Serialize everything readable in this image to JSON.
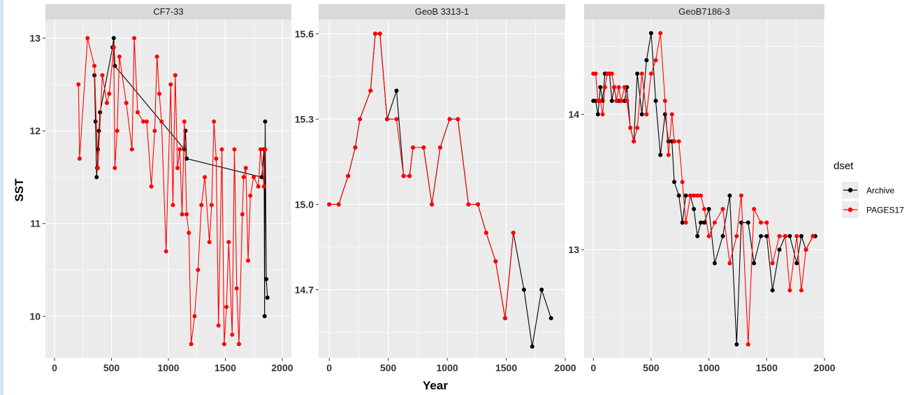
{
  "chart_data": {
    "type": "line",
    "xlabel": "Year",
    "ylabel": "SST",
    "legend": {
      "title": "dset",
      "position": "right",
      "entries": [
        {
          "name": "Archive",
          "color": "#000000"
        },
        {
          "name": "PAGES17",
          "color": "#ff0000"
        }
      ]
    },
    "panels": [
      {
        "title": "CF7-33",
        "xlim": [
          -80,
          2080
        ],
        "ylim": [
          9.55,
          13.2
        ],
        "xticks": [
          0,
          500,
          1000,
          1500,
          2000
        ],
        "yticks": [
          10,
          11,
          12,
          13
        ],
        "series": [
          {
            "name": "Archive",
            "x": [
              350,
              360,
              370,
              375,
              380,
              390,
              400,
              510,
              520,
              530,
              1140,
              1150,
              1160,
              1820,
              1840,
              1845,
              1850,
              1860,
              1870
            ],
            "y": [
              12.6,
              12.1,
              11.5,
              11.6,
              11.8,
              12.0,
              12.2,
              12.9,
              13.0,
              12.7,
              11.8,
              12.0,
              11.7,
              11.5,
              11.8,
              10.0,
              12.1,
              10.4,
              10.2
            ]
          },
          {
            "name": "PAGES17",
            "x": [
              210,
              220,
              290,
              350,
              380,
              420,
              460,
              480,
              520,
              530,
              550,
              570,
              630,
              680,
              700,
              730,
              780,
              810,
              850,
              880,
              900,
              920,
              940,
              980,
              1020,
              1040,
              1060,
              1080,
              1100,
              1120,
              1140,
              1160,
              1180,
              1200,
              1230,
              1260,
              1290,
              1320,
              1360,
              1380,
              1400,
              1420,
              1440,
              1470,
              1490,
              1510,
              1530,
              1560,
              1580,
              1600,
              1620,
              1650,
              1660,
              1680,
              1700,
              1720,
              1750,
              1790,
              1810,
              1840,
              1850
            ],
            "y": [
              12.5,
              11.7,
              13.0,
              12.7,
              11.6,
              12.6,
              12.3,
              12.4,
              12.9,
              11.6,
              12.0,
              12.8,
              12.3,
              11.8,
              13.0,
              12.2,
              12.1,
              12.1,
              11.4,
              12.0,
              12.8,
              12.4,
              12.1,
              10.7,
              12.5,
              11.2,
              12.6,
              11.6,
              11.8,
              11.1,
              12.1,
              11.1,
              10.9,
              9.7,
              10.0,
              10.5,
              11.2,
              11.5,
              10.8,
              11.2,
              12.1,
              11.7,
              9.9,
              11.8,
              9.7,
              10.1,
              10.8,
              9.8,
              11.8,
              10.3,
              9.7,
              11.1,
              11.5,
              11.6,
              10.6,
              11.3,
              11.5,
              11.4,
              11.8,
              11.4,
              11.8
            ]
          }
        ]
      },
      {
        "title": "GeoB 3313-1",
        "xlim": [
          -90,
          2000
        ],
        "ylim": [
          14.46,
          15.65
        ],
        "xticks": [
          0,
          500,
          1000,
          1500,
          2000
        ],
        "yticks": [
          14.7,
          15.0,
          15.3,
          15.6
        ],
        "series": [
          {
            "name": "Archive",
            "x": [
              0,
              80,
              160,
              220,
              260,
              350,
              390,
              430,
              490,
              570,
              630,
              680,
              710,
              800,
              870,
              940,
              1020,
              1090,
              1180,
              1260,
              1330,
              1410,
              1490,
              1560,
              1650,
              1720,
              1800,
              1880
            ],
            "y": [
              15.0,
              15.0,
              15.1,
              15.2,
              15.3,
              15.4,
              15.6,
              15.6,
              15.3,
              15.4,
              15.1,
              15.1,
              15.2,
              15.2,
              15.0,
              15.2,
              15.3,
              15.3,
              15.0,
              15.0,
              14.9,
              14.8,
              14.6,
              14.9,
              14.7,
              14.5,
              14.7,
              14.6
            ]
          },
          {
            "name": "PAGES17",
            "x": [
              0,
              80,
              160,
              220,
              260,
              350,
              390,
              430,
              490,
              570,
              630,
              680,
              710,
              800,
              870,
              940,
              1020,
              1090,
              1180,
              1260,
              1330,
              1410,
              1490,
              1560
            ],
            "y": [
              15.0,
              15.0,
              15.1,
              15.2,
              15.3,
              15.4,
              15.6,
              15.6,
              15.3,
              15.3,
              15.1,
              15.1,
              15.2,
              15.2,
              15.0,
              15.2,
              15.3,
              15.3,
              15.0,
              15.0,
              14.9,
              14.8,
              14.6,
              14.9
            ]
          }
        ]
      },
      {
        "title": "GeoB7186-3",
        "xlim": [
          -80,
          2000
        ],
        "ylim": [
          12.2,
          14.7
        ],
        "xticks": [
          0,
          500,
          1000,
          1500,
          2000
        ],
        "yticks": [
          13,
          14
        ],
        "series": [
          {
            "name": "Archive",
            "x": [
              0,
              20,
              40,
              60,
              80,
              100,
              120,
              140,
              160,
              180,
              200,
              220,
              240,
              270,
              290,
              320,
              350,
              380,
              420,
              460,
              500,
              540,
              580,
              620,
              650,
              680,
              700,
              740,
              770,
              800,
              840,
              870,
              900,
              930,
              960,
              1000,
              1050,
              1120,
              1180,
              1240,
              1280,
              1340,
              1390,
              1450,
              1500,
              1550,
              1610,
              1660,
              1700,
              1760,
              1800,
              1840,
              1900,
              1920
            ],
            "y": [
              14.1,
              14.1,
              14.0,
              14.2,
              14.1,
              14.3,
              14.3,
              14.3,
              14.1,
              14.2,
              14.1,
              14.1,
              14.1,
              14.1,
              14.2,
              13.9,
              13.8,
              14.3,
              14.0,
              14.4,
              14.6,
              14.1,
              13.7,
              14.0,
              13.8,
              13.8,
              13.5,
              13.4,
              13.2,
              13.4,
              13.4,
              13.3,
              13.1,
              13.2,
              13.2,
              13.3,
              12.9,
              13.1,
              13.4,
              12.3,
              13.2,
              13.2,
              12.9,
              13.1,
              13.1,
              12.7,
              13.0,
              13.1,
              13.1,
              12.9,
              13.1,
              13.0,
              13.1,
              13.1
            ]
          },
          {
            "name": "PAGES17",
            "x": [
              0,
              20,
              40,
              60,
              80,
              100,
              120,
              140,
              160,
              180,
              200,
              220,
              240,
              270,
              290,
              320,
              350,
              380,
              420,
              460,
              500,
              540,
              580,
              620,
              650,
              680,
              700,
              740,
              770,
              800,
              840,
              870,
              900,
              930,
              960,
              1000,
              1050,
              1120,
              1180,
              1240,
              1280,
              1340,
              1390,
              1450,
              1500,
              1550,
              1610,
              1660,
              1700,
              1760,
              1800,
              1840,
              1900
            ],
            "y": [
              14.3,
              14.3,
              14.1,
              14.1,
              14.0,
              14.2,
              14.3,
              14.3,
              14.3,
              14.2,
              14.1,
              14.2,
              14.1,
              14.2,
              14.1,
              13.9,
              13.8,
              13.9,
              14.3,
              14.0,
              14.3,
              14.4,
              14.6,
              14.1,
              13.7,
              14.0,
              13.8,
              13.8,
              13.5,
              13.2,
              13.4,
              13.4,
              13.4,
              13.4,
              13.3,
              13.1,
              13.2,
              13.3,
              12.9,
              13.1,
              13.4,
              12.3,
              13.3,
              13.2,
              13.2,
              12.9,
              13.1,
              13.1,
              12.7,
              13.1,
              12.7,
              13.0,
              13.1
            ]
          }
        ]
      }
    ]
  }
}
